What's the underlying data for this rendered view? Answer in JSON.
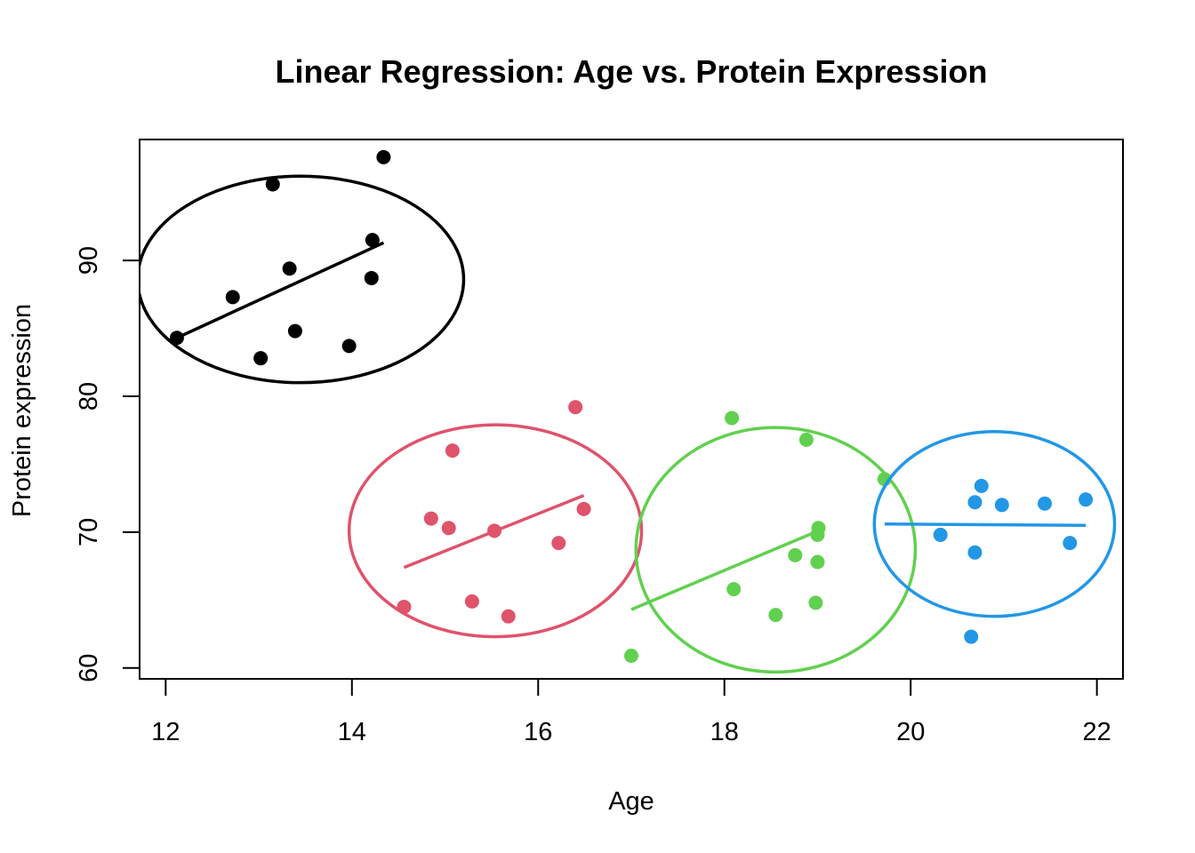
{
  "chart_data": {
    "type": "scatter",
    "title": "Linear Regression: Age vs. Protein Expression",
    "xlabel": "Age",
    "ylabel": "Protein expression",
    "xlim": [
      11.72,
      22.28
    ],
    "ylim": [
      59.2,
      98.9
    ],
    "xticks": [
      12,
      14,
      16,
      18,
      20,
      22
    ],
    "yticks": [
      60,
      70,
      80,
      90
    ],
    "grid": false,
    "legend": "none",
    "series": [
      {
        "color": "#000000",
        "points": [
          [
            12.12,
            84.3
          ],
          [
            12.72,
            87.3
          ],
          [
            13.15,
            95.6
          ],
          [
            13.33,
            89.4
          ],
          [
            13.02,
            82.8
          ],
          [
            13.39,
            84.8
          ],
          [
            13.97,
            83.7
          ],
          [
            14.22,
            91.5
          ],
          [
            14.21,
            88.7
          ],
          [
            14.34,
            97.6
          ]
        ],
        "fit": [
          [
            12.12,
            84.3
          ],
          [
            14.34,
            91.3
          ]
        ],
        "ellipse": {
          "cx": 13.45,
          "cy": 88.6,
          "rx": 1.75,
          "ry": 7.6
        }
      },
      {
        "color": "#DF536B",
        "points": [
          [
            14.56,
            64.5
          ],
          [
            14.85,
            71.0
          ],
          [
            15.04,
            70.3
          ],
          [
            15.08,
            76.0
          ],
          [
            15.29,
            64.9
          ],
          [
            15.53,
            70.1
          ],
          [
            15.68,
            63.8
          ],
          [
            16.22,
            69.2
          ],
          [
            16.4,
            79.2
          ],
          [
            16.49,
            71.7
          ]
        ],
        "fit": [
          [
            14.56,
            67.4
          ],
          [
            16.49,
            72.7
          ]
        ],
        "ellipse": {
          "cx": 15.54,
          "cy": 70.1,
          "rx": 1.57,
          "ry": 7.8
        }
      },
      {
        "color": "#61D04F",
        "points": [
          [
            17.0,
            60.9
          ],
          [
            18.08,
            78.4
          ],
          [
            18.1,
            65.8
          ],
          [
            18.55,
            63.9
          ],
          [
            18.76,
            68.3
          ],
          [
            18.88,
            76.8
          ],
          [
            18.98,
            64.8
          ],
          [
            19.0,
            67.8
          ],
          [
            19.0,
            69.8
          ],
          [
            19.01,
            70.3
          ],
          [
            19.72,
            73.9
          ]
        ],
        "fit": [
          [
            17.0,
            64.3
          ],
          [
            19.01,
            70.1
          ]
        ],
        "ellipse": {
          "cx": 18.55,
          "cy": 68.7,
          "rx": 1.5,
          "ry": 9.0
        }
      },
      {
        "color": "#2297E6",
        "points": [
          [
            20.32,
            69.8
          ],
          [
            20.65,
            62.3
          ],
          [
            20.69,
            72.2
          ],
          [
            20.69,
            68.5
          ],
          [
            20.76,
            73.4
          ],
          [
            20.98,
            72.0
          ],
          [
            21.44,
            72.1
          ],
          [
            21.71,
            69.2
          ],
          [
            21.88,
            72.4
          ]
        ],
        "fit": [
          [
            19.72,
            70.6
          ],
          [
            21.88,
            70.5
          ]
        ],
        "ellipse": {
          "cx": 20.9,
          "cy": 70.6,
          "rx": 1.29,
          "ry": 6.8
        }
      }
    ]
  }
}
